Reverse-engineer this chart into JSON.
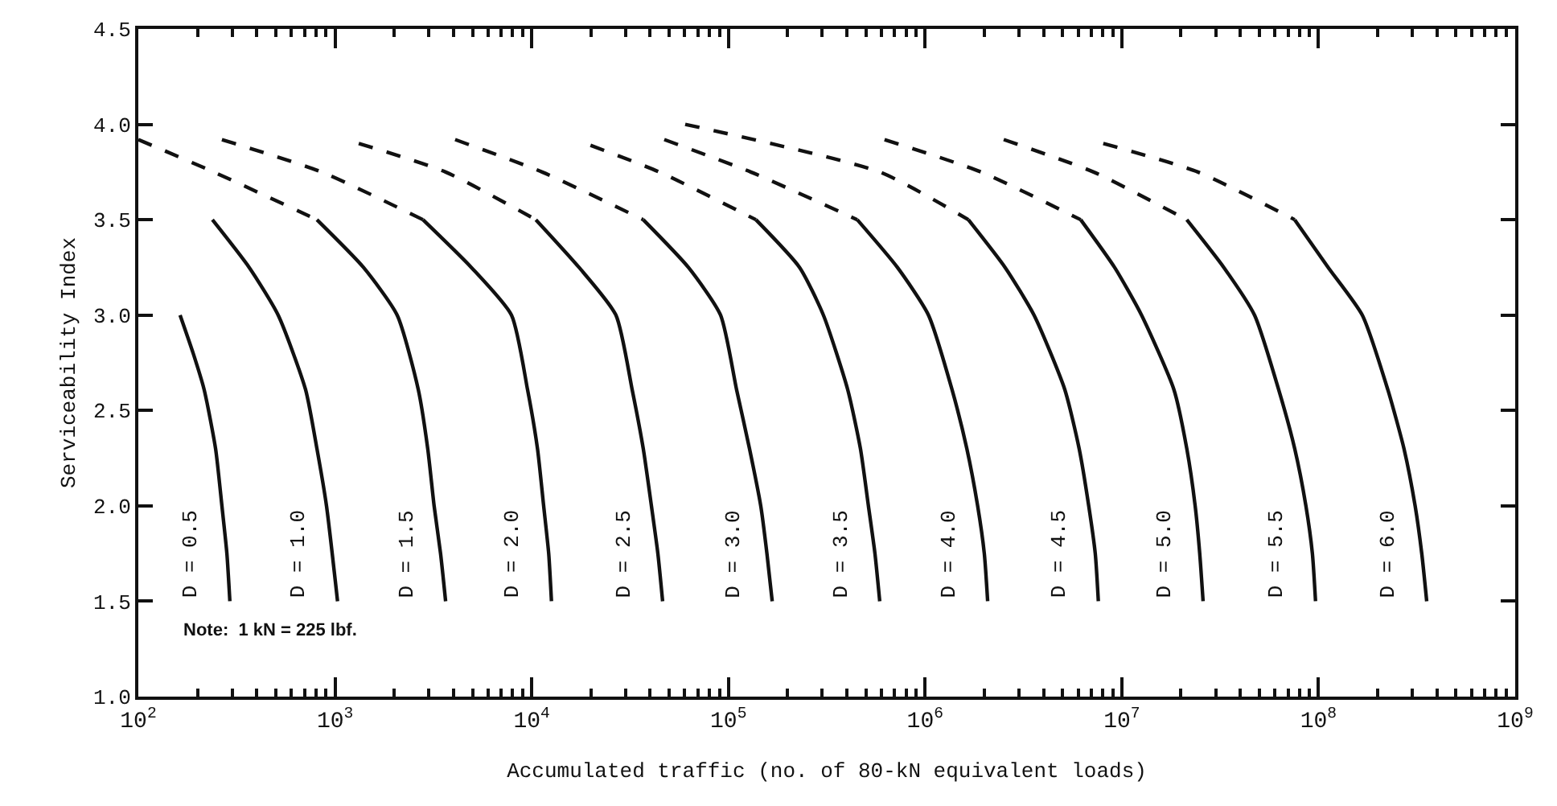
{
  "chart_data": {
    "type": "line",
    "xlabel": "Accumulated traffic (no. of 80-kN equivalent loads)",
    "ylabel": "Serviceability Index",
    "log": "x",
    "grid": false,
    "legend": false,
    "marker": "none",
    "xlim": [
      100,
      1000000000
    ],
    "ylim": [
      1.0,
      4.5
    ],
    "xticks": [
      {
        "value": 100,
        "label": "10$^{2}$"
      },
      {
        "value": 1000,
        "label": "10$^{3}$"
      },
      {
        "value": 10000,
        "label": "10$^{4}$"
      },
      {
        "value": 100000,
        "label": "10$^{5}$"
      },
      {
        "value": 1000000,
        "label": "10$^{6}$"
      },
      {
        "value": 10000000,
        "label": "10$^{7}$"
      },
      {
        "value": 100000000,
        "label": "10$^{8}$"
      },
      {
        "value": 1000000000,
        "label": "10$^{9}$"
      }
    ],
    "yticks": [
      {
        "value": 1.0,
        "label": "1.0"
      },
      {
        "value": 1.5,
        "label": "1.5"
      },
      {
        "value": 2.0,
        "label": "2.0"
      },
      {
        "value": 2.5,
        "label": "2.5"
      },
      {
        "value": 3.0,
        "label": "3.0"
      },
      {
        "value": 3.5,
        "label": "3.5"
      },
      {
        "value": 4.0,
        "label": "4.0"
      },
      {
        "value": 4.5,
        "label": "4.5"
      }
    ],
    "annotations": [
      "Note:  1 kN = 225 lbf."
    ],
    "series": [
      {
        "name": "D = 0.5",
        "color": "#111111",
        "line_style": "solid",
        "x": [
          163,
          190,
          216,
          247,
          266,
          282,
          292
        ],
        "values": [
          3.0,
          2.8,
          2.61,
          2.3,
          2.0,
          1.75,
          1.5
        ]
      },
      {
        "name": "D = 1.0",
        "color": "#111111",
        "line_style": "solid",
        "x": [
          238,
          366,
          514,
          708,
          809,
          905,
          1030
        ],
        "values": [
          3.5,
          3.25,
          3.0,
          2.61,
          2.3,
          2.0,
          1.5
        ]
      },
      {
        "color": "#111111",
        "line_style": "dashed",
        "x": [
          100,
          242,
          809
        ],
        "values": [
          3.92,
          3.75,
          3.5
        ]
      },
      {
        "name": "D = 1.5",
        "color": "#111111",
        "line_style": "solid",
        "x": [
          809,
          1395,
          2070,
          2650,
          2960,
          3190,
          3440,
          3650
        ],
        "values": [
          3.5,
          3.25,
          3.0,
          2.61,
          2.3,
          2.0,
          1.75,
          1.5
        ]
      },
      {
        "color": "#111111",
        "line_style": "dashed",
        "x": [
          266,
          855,
          2800
        ],
        "values": [
          3.92,
          3.75,
          3.5
        ]
      },
      {
        "name": "D = 2.0",
        "color": "#111111",
        "line_style": "solid",
        "x": [
          2800,
          4930,
          7890,
          9520,
          10700,
          11500,
          12200,
          12600
        ],
        "values": [
          3.5,
          3.25,
          3.0,
          2.61,
          2.3,
          2.0,
          1.75,
          1.5
        ]
      },
      {
        "color": "#111111",
        "line_style": "dashed",
        "x": [
          1320,
          3650,
          10500
        ],
        "values": [
          3.9,
          3.75,
          3.5
        ]
      },
      {
        "name": "D = 2.5",
        "color": "#111111",
        "line_style": "solid",
        "x": [
          10500,
          17400,
          26800,
          32400,
          36900,
          40600,
          43800,
          46300
        ],
        "values": [
          3.5,
          3.25,
          3.0,
          2.61,
          2.3,
          2.0,
          1.75,
          1.5
        ]
      },
      {
        "color": "#111111",
        "line_style": "dashed",
        "x": [
          4080,
          11300,
          36900
        ],
        "values": [
          3.92,
          3.75,
          3.5
        ]
      },
      {
        "name": "D = 3.0",
        "color": "#111111",
        "line_style": "solid",
        "x": [
          36900,
          62600,
          91200,
          110000,
          128000,
          146000,
          157000,
          167000
        ],
        "values": [
          3.5,
          3.25,
          3.0,
          2.61,
          2.3,
          2.0,
          1.75,
          1.5
        ]
      },
      {
        "color": "#111111",
        "line_style": "dashed",
        "x": [
          19900,
          44600,
          138000
        ],
        "values": [
          3.89,
          3.75,
          3.5
        ]
      },
      {
        "name": "D = 3.5",
        "color": "#111111",
        "line_style": "solid",
        "x": [
          138000,
          230000,
          304000,
          404000,
          469000,
          515000,
          556000,
          588000
        ],
        "values": [
          3.5,
          3.25,
          3.0,
          2.61,
          2.3,
          2.0,
          1.75,
          1.5
        ]
      },
      {
        "color": "#111111",
        "line_style": "dashed",
        "x": [
          47200,
          130000,
          452000
        ],
        "values": [
          3.92,
          3.75,
          3.5
        ]
      },
      {
        "name": "D = 4.0",
        "color": "#111111",
        "line_style": "solid",
        "x": [
          452000,
          723000,
          1040000,
          1370000,
          1630000,
          1850000,
          2000000,
          2080000
        ],
        "values": [
          3.5,
          3.25,
          3.0,
          2.61,
          2.3,
          2.0,
          1.75,
          1.5
        ]
      },
      {
        "color": "#111111",
        "line_style": "dashed",
        "x": [
          60300,
          588000,
          1660000
        ],
        "values": [
          4.0,
          3.75,
          3.5
        ]
      },
      {
        "name": "D = 4.5",
        "color": "#111111",
        "line_style": "solid",
        "x": [
          1660000,
          2550000,
          3580000,
          5130000,
          6070000,
          6790000,
          7330000,
          7600000
        ],
        "values": [
          3.5,
          3.25,
          3.0,
          2.61,
          2.3,
          2.0,
          1.75,
          1.5
        ]
      },
      {
        "color": "#111111",
        "line_style": "dashed",
        "x": [
          622000,
          1930000,
          6180000
        ],
        "values": [
          3.92,
          3.75,
          3.5
        ]
      },
      {
        "name": "D = 5.0",
        "color": "#111111",
        "line_style": "solid",
        "x": [
          6180000,
          9190000,
          12600000,
          18400000,
          21400000,
          23600000,
          24900000,
          25900000
        ],
        "values": [
          3.5,
          3.25,
          3.0,
          2.61,
          2.3,
          2.0,
          1.75,
          1.5
        ]
      },
      {
        "color": "#111111",
        "line_style": "dashed",
        "x": [
          2510000,
          7190000,
          21400000
        ],
        "values": [
          3.92,
          3.75,
          3.5
        ]
      },
      {
        "name": "D = 5.5",
        "color": "#111111",
        "line_style": "solid",
        "x": [
          21400000,
          33000000,
          47300000,
          62700000,
          75700000,
          86300000,
          93100000,
          96600000
        ],
        "values": [
          3.5,
          3.25,
          3.0,
          2.61,
          2.3,
          2.0,
          1.75,
          1.5
        ]
      },
      {
        "color": "#111111",
        "line_style": "dashed",
        "x": [
          8050000,
          24400000,
          75700000
        ],
        "values": [
          3.9,
          3.75,
          3.5
        ]
      },
      {
        "name": "D = 6.0",
        "color": "#111111",
        "line_style": "solid",
        "x": [
          75700000,
          112000000,
          167000000,
          225000000,
          272000000,
          310000000,
          335000000,
          355000000
        ],
        "values": [
          3.5,
          3.25,
          3.0,
          2.61,
          2.3,
          2.0,
          1.75,
          1.5
        ]
      }
    ]
  }
}
